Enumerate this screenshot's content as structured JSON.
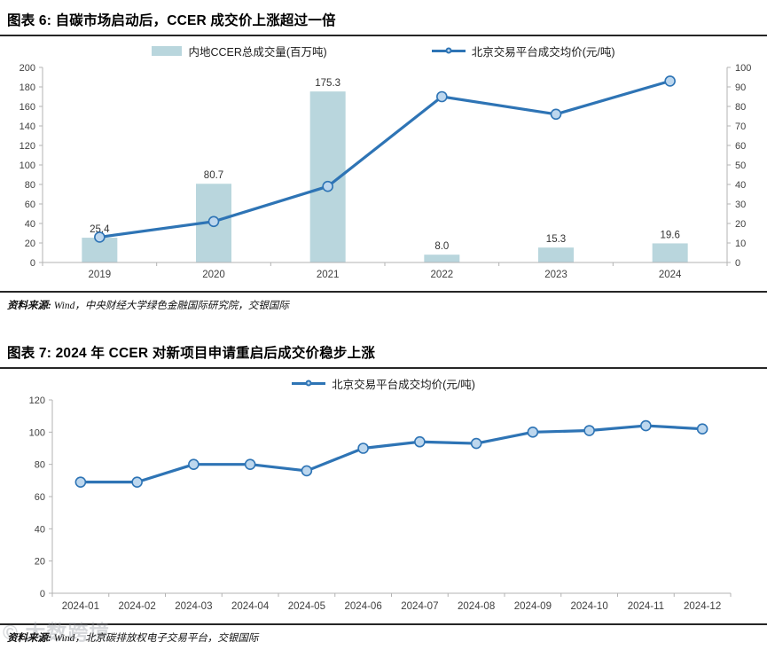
{
  "figure6": {
    "title": "图表 6: 自碳市场启动后，CCER 成交价上涨超过一倍",
    "source_prefix": "资料来源:",
    "source_rest": " Wind，中央财经大学绿色金融国际研究院，交银国际"
  },
  "figure7": {
    "title": "图表 7: 2024 年 CCER 对新项目申请重启后成交价稳步上涨",
    "source_prefix": "资料来源:",
    "source_rest": " Wind，北京碳排放权电子交易平台，交银国际"
  },
  "watermark": "© 大数跨境",
  "colors": {
    "bar_fill": "#b9d6dd",
    "line": "#2e74b5",
    "marker_fill": "#bdd7ee",
    "axis": "#b3b3b3",
    "tick_label": "#3f3f3f",
    "data_label": "#333333"
  },
  "chart_data": [
    {
      "type": "bar",
      "subtype": "bar+line combo, dual axis",
      "title": "图表 6: 自碳市场启动后，CCER 成交价上涨超过一倍",
      "categories": [
        "2019",
        "2020",
        "2021",
        "2022",
        "2023",
        "2024"
      ],
      "series": [
        {
          "name": "内地CCER总成交量(百万吨)",
          "type": "bar",
          "axis": "left",
          "values": [
            25.4,
            80.7,
            175.3,
            8.0,
            15.3,
            19.6
          ],
          "labels": [
            "25.4",
            "80.7",
            "175.3",
            "8.0",
            "15.3",
            "19.6"
          ],
          "color": "#b9d6dd"
        },
        {
          "name": "北京交易平台成交均价(元/吨)",
          "type": "line",
          "axis": "right",
          "values": [
            13,
            21,
            39,
            85,
            76,
            93
          ],
          "color": "#2e74b5"
        }
      ],
      "left_axis": {
        "min": 0,
        "max": 200,
        "step": 20
      },
      "right_axis": {
        "min": 0,
        "max": 100,
        "step": 10
      },
      "grid": false,
      "legend_position": "top"
    },
    {
      "type": "line",
      "title": "图表 7: 2024 年 CCER 对新项目申请重启后成交价稳步上涨",
      "categories": [
        "2024-01",
        "2024-02",
        "2024-03",
        "2024-04",
        "2024-05",
        "2024-06",
        "2024-07",
        "2024-08",
        "2024-09",
        "2024-10",
        "2024-11",
        "2024-12"
      ],
      "series": [
        {
          "name": "北京交易平台成交均价(元/吨)",
          "values": [
            69,
            69,
            80,
            80,
            76,
            90,
            94,
            93,
            100,
            101,
            104,
            102
          ],
          "color": "#2e74b5"
        }
      ],
      "y_axis": {
        "min": 0,
        "max": 120,
        "step": 20
      },
      "grid": false,
      "legend_position": "top"
    }
  ]
}
